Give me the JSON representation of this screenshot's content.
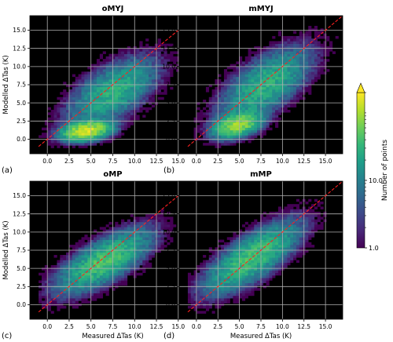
{
  "chart_data": [
    {
      "type": "heatmap",
      "title": "oMYJ",
      "panel_label": "(a)",
      "xlabel": "",
      "ylabel": "Modelled ΔTas (K)",
      "xlim": [
        -2,
        17
      ],
      "ylim": [
        -2,
        17
      ],
      "xticks": [
        "0.0",
        "2.5",
        "5.0",
        "7.5",
        "10.0",
        "12.5",
        "15.0"
      ],
      "yticks": [
        "0.0",
        "2.5",
        "5.0",
        "7.5",
        "10.0",
        "12.5",
        "15.0"
      ],
      "x_tick_values": [
        0,
        2.5,
        5,
        7.5,
        10,
        12.5,
        15
      ],
      "y_tick_values": [
        0,
        2.5,
        5,
        7.5,
        10,
        12.5,
        15
      ],
      "one_to_one_line": true,
      "grid": true,
      "density_shape": {
        "clusters": [
          {
            "x": 4.5,
            "y": 1.2,
            "sx": 1.4,
            "sy": 0.7,
            "rho": 0.3,
            "peak": 140
          },
          {
            "x": 7.5,
            "y": 6.5,
            "sx": 2.6,
            "sy": 2.4,
            "rho": 0.6,
            "peak": 28
          }
        ]
      }
    },
    {
      "type": "heatmap",
      "title": "mMYJ",
      "panel_label": "(b)",
      "xlabel": "",
      "ylabel": "",
      "xlim": [
        -2,
        17
      ],
      "ylim": [
        -2,
        17
      ],
      "xticks": [
        "0.0",
        "2.5",
        "5.0",
        "7.5",
        "10.0",
        "12.5",
        "15.0"
      ],
      "yticks": [
        "0.0",
        "2.5",
        "5.0",
        "7.5",
        "10.0",
        "12.5",
        "15.0"
      ],
      "x_tick_values": [
        0,
        2.5,
        5,
        7.5,
        10,
        12.5,
        15
      ],
      "y_tick_values": [
        0,
        2.5,
        5,
        7.5,
        10,
        12.5,
        15
      ],
      "one_to_one_line": true,
      "grid": true,
      "density_shape": {
        "clusters": [
          {
            "x": 4.8,
            "y": 2.0,
            "sx": 1.4,
            "sy": 0.9,
            "rho": 0.4,
            "peak": 90
          },
          {
            "x": 8.0,
            "y": 7.5,
            "sx": 2.7,
            "sy": 2.6,
            "rho": 0.65,
            "peak": 30
          }
        ]
      }
    },
    {
      "type": "heatmap",
      "title": "oMP",
      "panel_label": "(c)",
      "xlabel": "Measured ΔTas (K)",
      "ylabel": "Modelled ΔTas (K)",
      "xlim": [
        -2,
        17
      ],
      "ylim": [
        -2,
        17
      ],
      "xticks": [
        "0.0",
        "2.5",
        "5.0",
        "7.5",
        "10.0",
        "12.5",
        "15.0"
      ],
      "yticks": [
        "0.0",
        "2.5",
        "5.0",
        "7.5",
        "10.0",
        "12.5",
        "15.0"
      ],
      "x_tick_values": [
        0,
        2.5,
        5,
        7.5,
        10,
        12.5,
        15
      ],
      "y_tick_values": [
        0,
        2.5,
        5,
        7.5,
        10,
        12.5,
        15
      ],
      "one_to_one_line": true,
      "grid": true,
      "density_shape": {
        "clusters": [
          {
            "x": 6.5,
            "y": 6.0,
            "sx": 2.7,
            "sy": 2.2,
            "rho": 0.72,
            "peak": 45
          }
        ]
      }
    },
    {
      "type": "heatmap",
      "title": "mMP",
      "panel_label": "(d)",
      "xlabel": "Measured ΔTas (K)",
      "ylabel": "",
      "xlim": [
        -2,
        17
      ],
      "ylim": [
        -2,
        17
      ],
      "xticks": [
        "0.0",
        "2.5",
        "5.0",
        "7.5",
        "10.0",
        "12.5",
        "15.0"
      ],
      "yticks": [
        "0.0",
        "2.5",
        "5.0",
        "7.5",
        "10.0",
        "12.5",
        "15.0"
      ],
      "x_tick_values": [
        0,
        2.5,
        5,
        7.5,
        10,
        12.5,
        15
      ],
      "y_tick_values": [
        0,
        2.5,
        5,
        7.5,
        10,
        12.5,
        15
      ],
      "one_to_one_line": true,
      "grid": true,
      "density_shape": {
        "clusters": [
          {
            "x": 6.5,
            "y": 6.5,
            "sx": 2.8,
            "sy": 2.5,
            "rho": 0.75,
            "peak": 42
          }
        ]
      }
    }
  ],
  "colorbar": {
    "label": "Number of points",
    "scale": "log",
    "range": [
      1,
      200
    ],
    "colormap": "viridis",
    "ticks": [
      "1.0",
      "10.0"
    ],
    "tick_values": [
      1,
      10
    ],
    "extend_max": true
  },
  "colors": {
    "background": "#000000",
    "grid": "#b0b0b0",
    "one_to_one": "#ff2020",
    "viridis": [
      "#440154",
      "#482878",
      "#3e4989",
      "#31688e",
      "#26828e",
      "#1f9e89",
      "#35b779",
      "#6ece58",
      "#b5de2b",
      "#fde725"
    ]
  }
}
